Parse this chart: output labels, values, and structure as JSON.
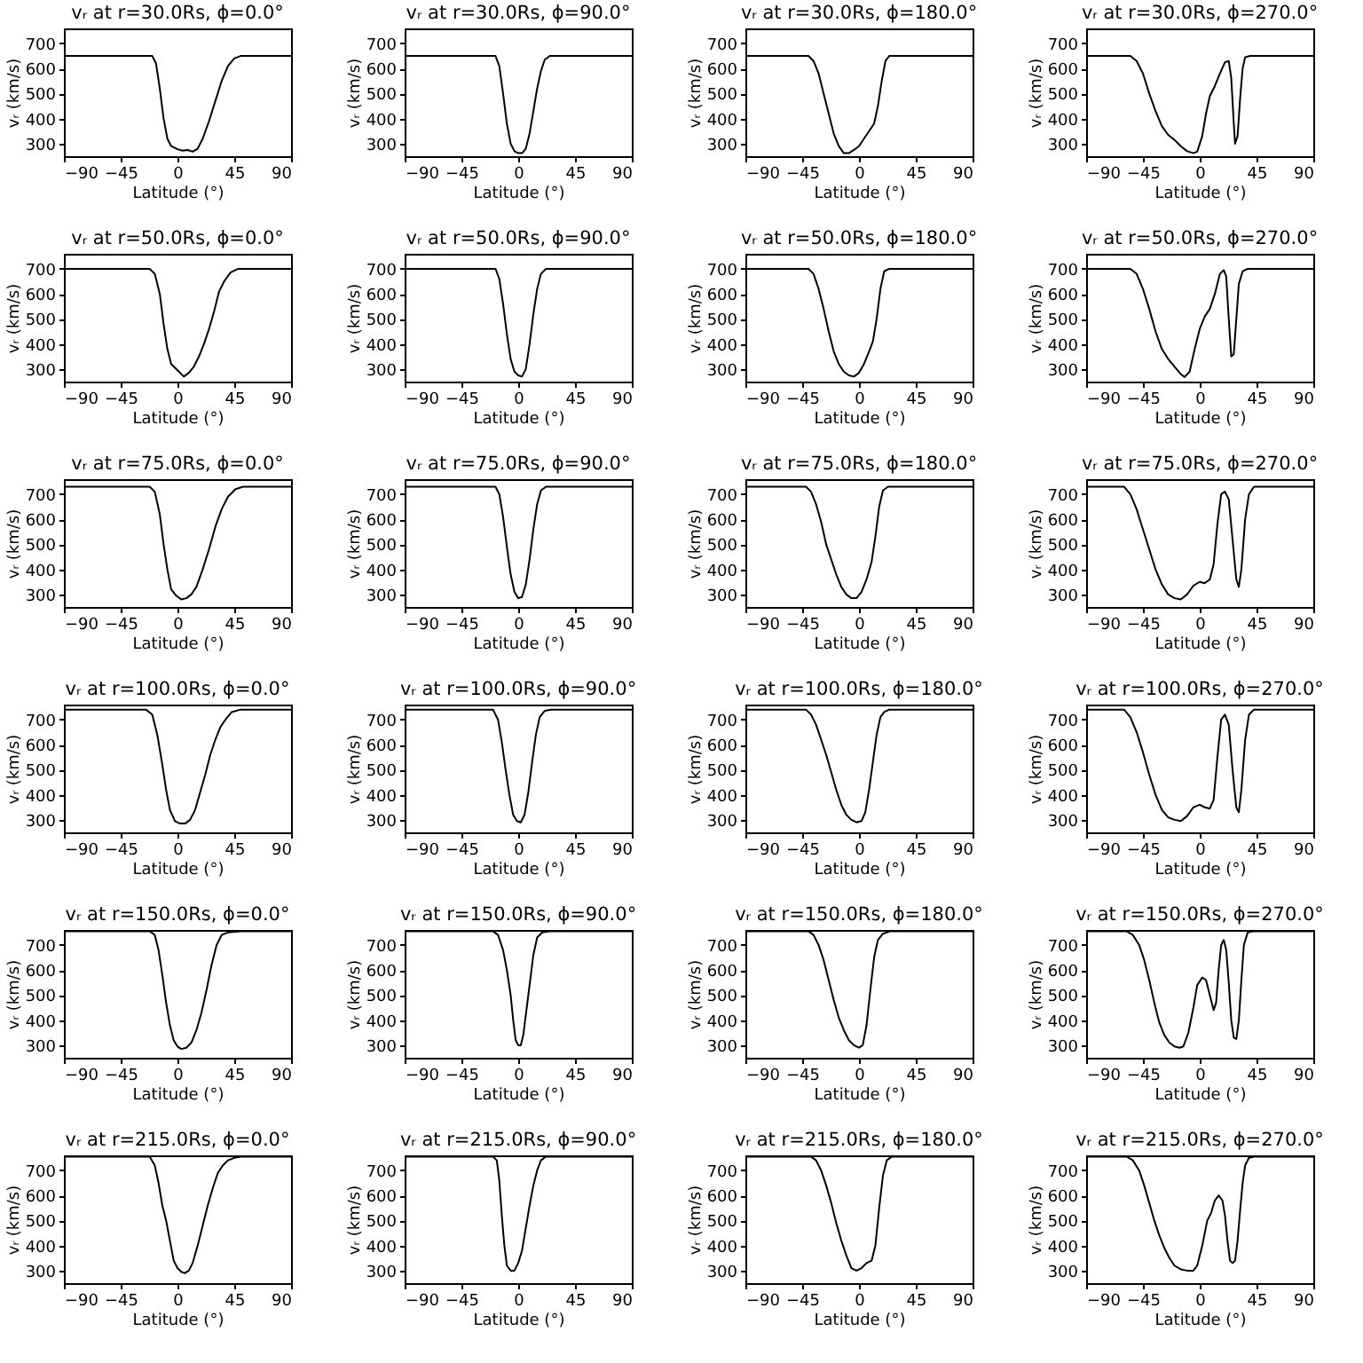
{
  "chart_data": [
    {
      "type": "line",
      "title": "vᵣ at r=30.0Rs, ϕ=0.0°",
      "xlabel": "Latitude (°)",
      "ylabel": "vᵣ (km/s)",
      "xlim": [
        -90,
        90
      ],
      "ylim": [
        250,
        760
      ],
      "xticks": [
        -90,
        -45,
        0,
        45,
        90
      ],
      "yticks": [
        300,
        400,
        500,
        600,
        700
      ],
      "x": [
        -90,
        -20,
        -17,
        -14,
        -11,
        -8,
        -5,
        0,
        4,
        8,
        12,
        16,
        20,
        25,
        30,
        35,
        40,
        45,
        50,
        90
      ],
      "series": [
        {
          "color": "#000000",
          "values": [
            650,
            650,
            620,
            520,
            400,
            320,
            290,
            278,
            272,
            275,
            268,
            280,
            320,
            390,
            470,
            550,
            610,
            640,
            650,
            650
          ]
        }
      ]
    },
    {
      "type": "line",
      "title": "vᵣ at r=30.0Rs, ϕ=90.0°",
      "xlabel": "Latitude (°)",
      "ylabel": "vᵣ (km/s)",
      "xlim": [
        -90,
        90
      ],
      "ylim": [
        250,
        760
      ],
      "xticks": [
        -90,
        -45,
        0,
        45,
        90
      ],
      "yticks": [
        300,
        400,
        500,
        600,
        700
      ],
      "x": [
        -90,
        -18,
        -15,
        -12,
        -9,
        -6,
        -3,
        0,
        3,
        6,
        9,
        12,
        15,
        18,
        21,
        25,
        90
      ],
      "series": [
        {
          "color": "#000000",
          "values": [
            650,
            650,
            610,
            500,
            380,
            300,
            270,
            262,
            262,
            280,
            340,
            430,
            520,
            590,
            635,
            650,
            650
          ]
        }
      ]
    },
    {
      "type": "line",
      "title": "vᵣ at r=30.0Rs, ϕ=180.0°",
      "xlabel": "Latitude (°)",
      "ylabel": "vᵣ (km/s)",
      "xlim": [
        -90,
        90
      ],
      "ylim": [
        250,
        760
      ],
      "xticks": [
        -90,
        -45,
        0,
        45,
        90
      ],
      "yticks": [
        300,
        400,
        500,
        600,
        700
      ],
      "x": [
        -90,
        -40,
        -36,
        -32,
        -28,
        -24,
        -20,
        -16,
        -12,
        -8,
        -4,
        0,
        4,
        8,
        12,
        15,
        18,
        21,
        24,
        90
      ],
      "series": [
        {
          "color": "#000000",
          "values": [
            650,
            650,
            630,
            580,
            500,
            420,
            340,
            290,
            262,
            262,
            275,
            290,
            320,
            350,
            380,
            450,
            550,
            630,
            650,
            650
          ]
        }
      ]
    },
    {
      "type": "line",
      "title": "vᵣ at r=30.0Rs, ϕ=270.0°",
      "xlabel": "Latitude (°)",
      "ylabel": "vᵣ (km/s)",
      "xlim": [
        -90,
        90
      ],
      "ylim": [
        250,
        760
      ],
      "xticks": [
        -90,
        -45,
        0,
        45,
        90
      ],
      "yticks": [
        300,
        400,
        500,
        600,
        700
      ],
      "x": [
        -90,
        -55,
        -50,
        -45,
        -40,
        -35,
        -30,
        -25,
        -20,
        -15,
        -10,
        -5,
        -2,
        2,
        5,
        8,
        12,
        16,
        20,
        23,
        25,
        27,
        28,
        30,
        32,
        34,
        36,
        40,
        90
      ],
      "series": [
        {
          "color": "#000000",
          "values": [
            650,
            650,
            630,
            580,
            500,
            430,
            370,
            335,
            315,
            290,
            270,
            262,
            268,
            330,
            420,
            490,
            530,
            580,
            625,
            630,
            560,
            380,
            300,
            330,
            480,
            600,
            645,
            650,
            650
          ]
        }
      ]
    },
    {
      "type": "line",
      "title": "vᵣ at r=50.0Rs, ϕ=0.0°",
      "xlabel": "Latitude (°)",
      "ylabel": "vᵣ (km/s)",
      "xlim": [
        -90,
        90
      ],
      "ylim": [
        250,
        760
      ],
      "xticks": [
        -90,
        -45,
        0,
        45,
        90
      ],
      "yticks": [
        300,
        400,
        500,
        600,
        700
      ],
      "x": [
        -90,
        -22,
        -18,
        -14,
        -11,
        -8,
        -5,
        0,
        5,
        9,
        13,
        17,
        21,
        25,
        29,
        33,
        37,
        42,
        48,
        90
      ],
      "series": [
        {
          "color": "#000000",
          "values": [
            700,
            700,
            680,
            600,
            480,
            380,
            320,
            295,
            270,
            285,
            310,
            350,
            400,
            460,
            530,
            610,
            650,
            685,
            700,
            700
          ]
        }
      ]
    },
    {
      "type": "line",
      "title": "vᵣ at r=50.0Rs, ϕ=90.0°",
      "xlabel": "Latitude (°)",
      "ylabel": "vᵣ (km/s)",
      "xlim": [
        -90,
        90
      ],
      "ylim": [
        250,
        760
      ],
      "xticks": [
        -90,
        -45,
        0,
        45,
        90
      ],
      "yticks": [
        300,
        400,
        500,
        600,
        700
      ],
      "x": [
        -90,
        -18,
        -15,
        -12,
        -9,
        -6,
        -3,
        0,
        3,
        6,
        9,
        12,
        15,
        18,
        22,
        90
      ],
      "series": [
        {
          "color": "#000000",
          "values": [
            700,
            700,
            660,
            560,
            440,
            340,
            290,
            275,
            270,
            300,
            400,
            520,
            620,
            680,
            700,
            700
          ]
        }
      ]
    },
    {
      "type": "line",
      "title": "vᵣ at r=50.0Rs, ϕ=180.0°",
      "xlabel": "Latitude (°)",
      "ylabel": "vᵣ (km/s)",
      "xlim": [
        -90,
        90
      ],
      "ylim": [
        250,
        760
      ],
      "xticks": [
        -90,
        -45,
        0,
        45,
        90
      ],
      "yticks": [
        300,
        400,
        500,
        600,
        700
      ],
      "x": [
        -90,
        -40,
        -36,
        -32,
        -28,
        -24,
        -20,
        -16,
        -12,
        -8,
        -4,
        0,
        4,
        8,
        11,
        14,
        17,
        20,
        24,
        90
      ],
      "series": [
        {
          "color": "#000000",
          "values": [
            700,
            700,
            680,
            620,
            540,
            450,
            370,
            320,
            290,
            275,
            270,
            285,
            320,
            370,
            410,
            500,
            620,
            690,
            700,
            700
          ]
        }
      ]
    },
    {
      "type": "line",
      "title": "vᵣ at r=50.0Rs, ϕ=270.0°",
      "xlabel": "Latitude (°)",
      "ylabel": "vᵣ (km/s)",
      "xlim": [
        -90,
        90
      ],
      "ylim": [
        250,
        760
      ],
      "xticks": [
        -90,
        -45,
        0,
        45,
        90
      ],
      "yticks": [
        300,
        400,
        500,
        600,
        700
      ],
      "x": [
        -90,
        -55,
        -50,
        -45,
        -40,
        -35,
        -30,
        -25,
        -20,
        -15,
        -12,
        -8,
        -4,
        0,
        4,
        8,
        12,
        16,
        19,
        21,
        23,
        25,
        27,
        29,
        31,
        34,
        38,
        90
      ],
      "series": [
        {
          "color": "#000000",
          "values": [
            700,
            700,
            680,
            620,
            540,
            450,
            380,
            340,
            310,
            280,
            268,
            290,
            380,
            460,
            510,
            540,
            600,
            680,
            695,
            670,
            500,
            350,
            360,
            500,
            640,
            690,
            700,
            700
          ]
        }
      ]
    },
    {
      "type": "line",
      "title": "vᵣ at r=75.0Rs, ϕ=0.0°",
      "xlabel": "Latitude (°)",
      "ylabel": "vᵣ (km/s)",
      "xlim": [
        -90,
        90
      ],
      "ylim": [
        250,
        760
      ],
      "xticks": [
        -90,
        -45,
        0,
        45,
        90
      ],
      "yticks": [
        300,
        400,
        500,
        600,
        700
      ],
      "x": [
        -90,
        -22,
        -18,
        -14,
        -11,
        -8,
        -5,
        -1,
        3,
        7,
        11,
        15,
        20,
        25,
        30,
        35,
        40,
        46,
        52,
        90
      ],
      "series": [
        {
          "color": "#000000",
          "values": [
            730,
            730,
            710,
            620,
            500,
            400,
            320,
            295,
            280,
            285,
            300,
            330,
            400,
            480,
            570,
            640,
            690,
            720,
            730,
            730
          ]
        }
      ]
    },
    {
      "type": "line",
      "title": "vᵣ at r=75.0Rs, ϕ=90.0°",
      "xlabel": "Latitude (°)",
      "ylabel": "vᵣ (km/s)",
      "xlim": [
        -90,
        90
      ],
      "ylim": [
        250,
        760
      ],
      "xticks": [
        -90,
        -45,
        0,
        45,
        90
      ],
      "yticks": [
        300,
        400,
        500,
        600,
        700
      ],
      "x": [
        -90,
        -18,
        -15,
        -12,
        -9,
        -6,
        -3,
        0,
        3,
        6,
        9,
        12,
        15,
        18,
        22,
        90
      ],
      "series": [
        {
          "color": "#000000",
          "values": [
            730,
            730,
            700,
            610,
            490,
            380,
            310,
            285,
            290,
            340,
            440,
            560,
            660,
            715,
            730,
            730
          ]
        }
      ]
    },
    {
      "type": "line",
      "title": "vᵣ at r=75.0Rs, ϕ=180.0°",
      "xlabel": "Latitude (°)",
      "ylabel": "vᵣ (km/s)",
      "xlim": [
        -90,
        90
      ],
      "ylim": [
        250,
        760
      ],
      "xticks": [
        -90,
        -45,
        0,
        45,
        90
      ],
      "yticks": [
        300,
        400,
        500,
        600,
        700
      ],
      "x": [
        -90,
        -42,
        -38,
        -34,
        -30,
        -26,
        -22,
        -18,
        -14,
        -10,
        -6,
        -2,
        2,
        6,
        10,
        13,
        16,
        19,
        23,
        90
      ],
      "series": [
        {
          "color": "#000000",
          "values": [
            730,
            730,
            710,
            660,
            590,
            500,
            440,
            380,
            330,
            300,
            285,
            285,
            310,
            360,
            430,
            530,
            650,
            715,
            730,
            730
          ]
        }
      ]
    },
    {
      "type": "line",
      "title": "vᵣ at r=75.0Rs, ϕ=270.0°",
      "xlabel": "Latitude (°)",
      "ylabel": "vᵣ (km/s)",
      "xlim": [
        -90,
        90
      ],
      "ylim": [
        250,
        760
      ],
      "xticks": [
        -90,
        -45,
        0,
        45,
        90
      ],
      "yticks": [
        300,
        400,
        500,
        600,
        700
      ],
      "x": [
        -90,
        -60,
        -55,
        -50,
        -45,
        -40,
        -35,
        -30,
        -25,
        -20,
        -15,
        -10,
        -5,
        0,
        4,
        8,
        11,
        14,
        17,
        20,
        23,
        26,
        29,
        31,
        33,
        36,
        39,
        43,
        90
      ],
      "series": [
        {
          "color": "#000000",
          "values": [
            730,
            730,
            700,
            640,
            560,
            480,
            400,
            340,
            300,
            285,
            280,
            300,
            335,
            350,
            345,
            360,
            420,
            580,
            700,
            710,
            680,
            520,
            360,
            330,
            400,
            600,
            700,
            730,
            730
          ]
        }
      ]
    },
    {
      "type": "line",
      "title": "vᵣ at r=100.0Rs, ϕ=0.0°",
      "xlabel": "Latitude (°)",
      "ylabel": "vᵣ (km/s)",
      "xlim": [
        -90,
        90
      ],
      "ylim": [
        250,
        760
      ],
      "xticks": [
        -90,
        -45,
        0,
        45,
        90
      ],
      "yticks": [
        300,
        400,
        500,
        600,
        700
      ],
      "x": [
        -90,
        -25,
        -20,
        -16,
        -12,
        -9,
        -6,
        -2,
        2,
        6,
        10,
        14,
        18,
        22,
        26,
        30,
        34,
        38,
        43,
        50,
        90
      ],
      "series": [
        {
          "color": "#000000",
          "values": [
            740,
            740,
            720,
            640,
            520,
            420,
            340,
            295,
            285,
            285,
            300,
            340,
            410,
            480,
            560,
            620,
            670,
            700,
            730,
            740,
            740
          ]
        }
      ]
    },
    {
      "type": "line",
      "title": "vᵣ at r=100.0Rs, ϕ=90.0°",
      "xlabel": "Latitude (°)",
      "ylabel": "vᵣ (km/s)",
      "xlim": [
        -90,
        90
      ],
      "ylim": [
        250,
        760
      ],
      "xticks": [
        -90,
        -45,
        0,
        45,
        90
      ],
      "yticks": [
        300,
        400,
        500,
        600,
        700
      ],
      "x": [
        -90,
        -20,
        -16,
        -13,
        -10,
        -7,
        -4,
        -1,
        2,
        5,
        8,
        11,
        14,
        17,
        21,
        26,
        90
      ],
      "series": [
        {
          "color": "#000000",
          "values": [
            740,
            740,
            700,
            610,
            500,
            400,
            320,
            295,
            290,
            320,
            410,
            530,
            640,
            710,
            735,
            740,
            740
          ]
        }
      ]
    },
    {
      "type": "line",
      "title": "vᵣ at r=100.0Rs, ϕ=180.0°",
      "xlabel": "Latitude (°)",
      "ylabel": "vᵣ (km/s)",
      "xlim": [
        -90,
        90
      ],
      "ylim": [
        250,
        760
      ],
      "xticks": [
        -90,
        -45,
        0,
        45,
        90
      ],
      "yticks": [
        300,
        400,
        500,
        600,
        700
      ],
      "x": [
        -90,
        -42,
        -38,
        -34,
        -30,
        -26,
        -22,
        -18,
        -14,
        -10,
        -6,
        -2,
        2,
        5,
        8,
        11,
        14,
        17,
        20,
        24,
        90
      ],
      "series": [
        {
          "color": "#000000",
          "values": [
            740,
            740,
            720,
            680,
            620,
            560,
            490,
            420,
            360,
            320,
            300,
            290,
            295,
            330,
            420,
            530,
            640,
            710,
            730,
            740,
            740
          ]
        }
      ]
    },
    {
      "type": "line",
      "title": "vᵣ at r=100.0Rs, ϕ=270.0°",
      "xlabel": "Latitude (°)",
      "ylabel": "vᵣ (km/s)",
      "xlim": [
        -90,
        90
      ],
      "ylim": [
        250,
        760
      ],
      "xticks": [
        -90,
        -45,
        0,
        45,
        90
      ],
      "yticks": [
        300,
        400,
        500,
        600,
        700
      ],
      "x": [
        -90,
        -60,
        -55,
        -50,
        -45,
        -40,
        -35,
        -30,
        -25,
        -20,
        -15,
        -10,
        -5,
        0,
        4,
        8,
        11,
        14,
        17,
        20,
        23,
        26,
        29,
        31,
        33,
        36,
        39,
        43,
        90
      ],
      "series": [
        {
          "color": "#000000",
          "values": [
            740,
            740,
            710,
            650,
            570,
            480,
            400,
            340,
            310,
            300,
            295,
            315,
            350,
            360,
            350,
            345,
            380,
            550,
            700,
            720,
            680,
            500,
            350,
            330,
            420,
            620,
            720,
            740,
            740
          ]
        }
      ]
    },
    {
      "type": "line",
      "title": "vᵣ at r=150.0Rs, ϕ=0.0°",
      "xlabel": "Latitude (°)",
      "ylabel": "vᵣ (km/s)",
      "xlim": [
        -90,
        90
      ],
      "ylim": [
        250,
        760
      ],
      "xticks": [
        -90,
        -45,
        0,
        45,
        90
      ],
      "yticks": [
        300,
        400,
        500,
        600,
        700
      ],
      "x": [
        -90,
        -22,
        -18,
        -15,
        -12,
        -9,
        -6,
        -3,
        0,
        3,
        7,
        11,
        15,
        19,
        23,
        27,
        31,
        35,
        40,
        50,
        90
      ],
      "series": [
        {
          "color": "#000000",
          "values": [
            755,
            755,
            740,
            680,
            580,
            470,
            380,
            320,
            295,
            285,
            290,
            310,
            360,
            430,
            520,
            620,
            700,
            740,
            750,
            755,
            755
          ]
        }
      ]
    },
    {
      "type": "line",
      "title": "vᵣ at r=150.0Rs, ϕ=90.0°",
      "xlabel": "Latitude (°)",
      "ylabel": "vᵣ (km/s)",
      "xlim": [
        -90,
        90
      ],
      "ylim": [
        250,
        760
      ],
      "xticks": [
        -90,
        -45,
        0,
        45,
        90
      ],
      "yticks": [
        300,
        400,
        500,
        600,
        700
      ],
      "x": [
        -90,
        -20,
        -16,
        -12,
        -9,
        -6,
        -4,
        -2,
        0,
        2,
        4,
        6,
        9,
        12,
        15,
        19,
        25,
        90
      ],
      "series": [
        {
          "color": "#000000",
          "values": [
            755,
            755,
            740,
            680,
            600,
            500,
            400,
            320,
            300,
            300,
            340,
            420,
            540,
            660,
            730,
            750,
            755,
            755
          ]
        }
      ]
    },
    {
      "type": "line",
      "title": "vᵣ at r=150.0Rs, ϕ=180.0°",
      "xlabel": "Latitude (°)",
      "ylabel": "vᵣ (km/s)",
      "xlim": [
        -90,
        90
      ],
      "ylim": [
        250,
        760
      ],
      "xticks": [
        -90,
        -45,
        0,
        45,
        90
      ],
      "yticks": [
        300,
        400,
        500,
        600,
        700
      ],
      "x": [
        -90,
        -40,
        -36,
        -32,
        -28,
        -24,
        -20,
        -16,
        -12,
        -8,
        -4,
        0,
        3,
        6,
        9,
        12,
        15,
        19,
        25,
        90
      ],
      "series": [
        {
          "color": "#000000",
          "values": [
            755,
            755,
            740,
            700,
            640,
            560,
            480,
            410,
            360,
            320,
            300,
            290,
            300,
            380,
            520,
            650,
            720,
            745,
            755,
            755
          ]
        }
      ]
    },
    {
      "type": "line",
      "title": "vᵣ at r=150.0Rs, ϕ=270.0°",
      "xlabel": "Latitude (°)",
      "ylabel": "vᵣ (km/s)",
      "xlim": [
        -90,
        90
      ],
      "ylim": [
        250,
        760
      ],
      "xticks": [
        -90,
        -45,
        0,
        45,
        90
      ],
      "yticks": [
        300,
        400,
        500,
        600,
        700
      ],
      "x": [
        -90,
        -58,
        -53,
        -48,
        -44,
        -40,
        -36,
        -32,
        -28,
        -24,
        -20,
        -16,
        -13,
        -9,
        -5,
        -2,
        2,
        5,
        8,
        11,
        13,
        15,
        17,
        19,
        21,
        23,
        25,
        27,
        29,
        31,
        33,
        35,
        38,
        42,
        90
      ],
      "series": [
        {
          "color": "#000000",
          "values": [
            755,
            755,
            740,
            700,
            640,
            560,
            470,
            390,
            340,
            310,
            295,
            290,
            295,
            350,
            450,
            540,
            570,
            560,
            500,
            440,
            470,
            600,
            700,
            720,
            680,
            550,
            400,
            330,
            325,
            400,
            560,
            700,
            750,
            755,
            755
          ]
        }
      ]
    },
    {
      "type": "line",
      "title": "vᵣ at r=215.0Rs, ϕ=0.0°",
      "xlabel": "Latitude (°)",
      "ylabel": "vᵣ (km/s)",
      "xlim": [
        -90,
        90
      ],
      "ylim": [
        250,
        760
      ],
      "xticks": [
        -90,
        -45,
        0,
        45,
        90
      ],
      "yticks": [
        300,
        400,
        500,
        600,
        700
      ],
      "x": [
        -90,
        -22,
        -18,
        -15,
        -12,
        -9,
        -6,
        -3,
        0,
        3,
        6,
        9,
        12,
        16,
        20,
        24,
        28,
        32,
        36,
        40,
        45,
        50,
        90
      ],
      "series": [
        {
          "color": "#000000",
          "values": [
            755,
            755,
            720,
            650,
            560,
            500,
            420,
            340,
            310,
            295,
            290,
            300,
            330,
            400,
            480,
            560,
            630,
            690,
            720,
            740,
            750,
            755,
            755
          ]
        }
      ]
    },
    {
      "type": "line",
      "title": "vᵣ at r=215.0Rs, ϕ=90.0°",
      "xlabel": "Latitude (°)",
      "ylabel": "vᵣ (km/s)",
      "xlim": [
        -90,
        90
      ],
      "ylim": [
        250,
        760
      ],
      "xticks": [
        -90,
        -45,
        0,
        45,
        90
      ],
      "yticks": [
        300,
        400,
        500,
        600,
        700
      ],
      "x": [
        -90,
        -20,
        -17,
        -15,
        -13,
        -11,
        -9,
        -6,
        -3,
        0,
        3,
        6,
        9,
        12,
        15,
        18,
        22,
        90
      ],
      "series": [
        {
          "color": "#000000",
          "values": [
            755,
            755,
            740,
            660,
            520,
            400,
            320,
            300,
            300,
            330,
            380,
            470,
            560,
            640,
            700,
            740,
            755,
            755
          ]
        }
      ]
    },
    {
      "type": "line",
      "title": "vᵣ at r=215.0Rs, ϕ=180.0°",
      "xlabel": "Latitude (°)",
      "ylabel": "vᵣ (km/s)",
      "xlim": [
        -90,
        90
      ],
      "ylim": [
        250,
        760
      ],
      "xticks": [
        -90,
        -45,
        0,
        45,
        90
      ],
      "yticks": [
        300,
        400,
        500,
        600,
        700
      ],
      "x": [
        -90,
        -38,
        -34,
        -30,
        -26,
        -22,
        -18,
        -14,
        -10,
        -6,
        -2,
        2,
        6,
        10,
        13,
        16,
        19,
        22,
        26,
        90
      ],
      "series": [
        {
          "color": "#000000",
          "values": [
            755,
            755,
            740,
            700,
            640,
            570,
            490,
            420,
            360,
            310,
            300,
            310,
            330,
            340,
            400,
            550,
            680,
            740,
            755,
            755
          ]
        }
      ]
    },
    {
      "type": "line",
      "title": "vᵣ at r=215.0Rs, ϕ=270.0°",
      "xlabel": "Latitude (°)",
      "ylabel": "vᵣ (km/s)",
      "xlim": [
        -90,
        90
      ],
      "ylim": [
        250,
        760
      ],
      "xticks": [
        -90,
        -45,
        0,
        45,
        90
      ],
      "yticks": [
        300,
        400,
        500,
        600,
        700
      ],
      "x": [
        -90,
        -58,
        -53,
        -48,
        -44,
        -40,
        -36,
        -32,
        -28,
        -24,
        -20,
        -15,
        -10,
        -5,
        -2,
        2,
        6,
        9,
        12,
        15,
        18,
        20,
        22,
        24,
        26,
        28,
        30,
        32,
        34,
        36,
        39,
        43,
        90
      ],
      "series": [
        {
          "color": "#000000",
          "values": [
            755,
            755,
            740,
            700,
            640,
            570,
            500,
            440,
            390,
            350,
            320,
            305,
            300,
            300,
            320,
            400,
            500,
            530,
            580,
            600,
            580,
            520,
            420,
            340,
            330,
            340,
            420,
            540,
            650,
            720,
            750,
            755,
            755
          ]
        }
      ]
    }
  ]
}
